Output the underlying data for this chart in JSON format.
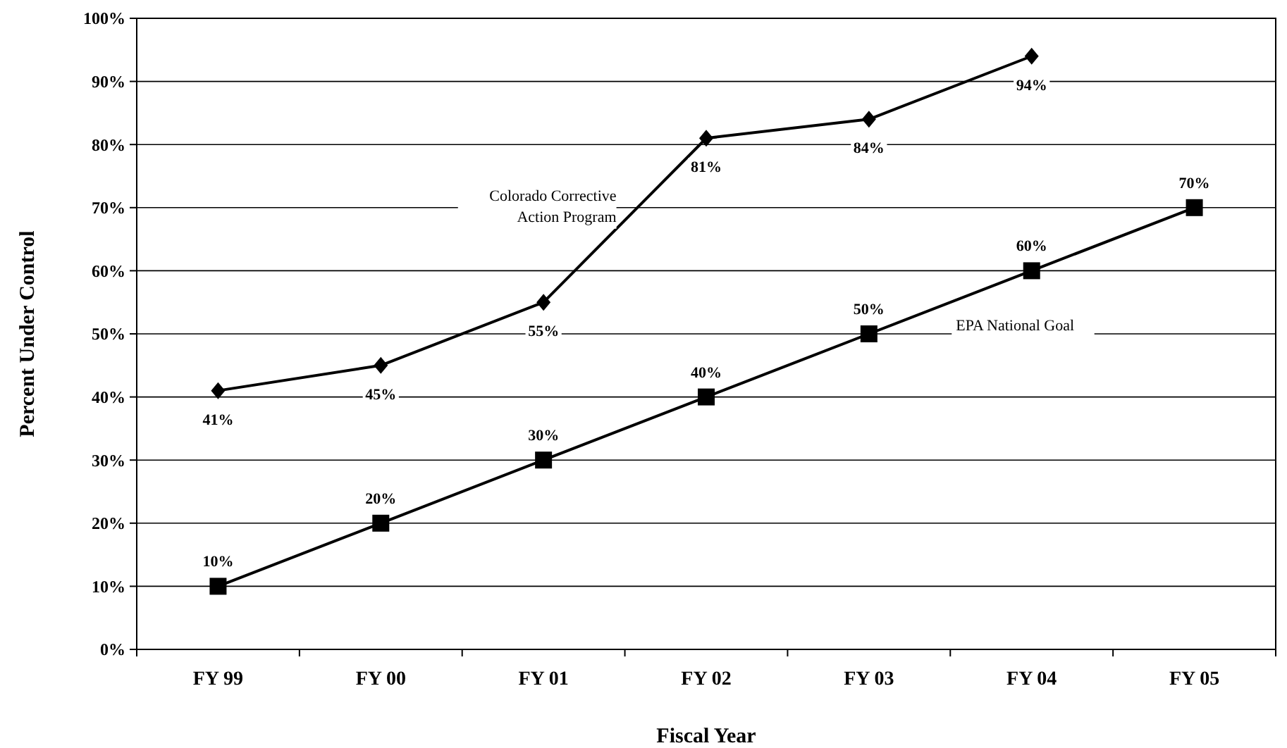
{
  "chart_data": {
    "type": "line",
    "xlabel": "Fiscal Year",
    "ylabel": "Percent Under Control",
    "categories": [
      "FY 99",
      "FY 00",
      "FY 01",
      "FY 02",
      "FY 03",
      "FY 04",
      "FY 05"
    ],
    "series": [
      {
        "name": "Colorado Corrective Action Program",
        "color": "#000000",
        "marker": "diamond",
        "values": [
          41,
          45,
          55,
          81,
          84,
          94,
          null
        ],
        "value_labels": [
          "41%",
          "45%",
          "55%",
          "81%",
          "84%",
          "94%",
          null
        ]
      },
      {
        "name": "EPA National Goal",
        "color": "#000000",
        "marker": "square",
        "values": [
          10,
          20,
          30,
          40,
          50,
          60,
          70
        ],
        "value_labels": [
          "10%",
          "20%",
          "30%",
          "40%",
          "50%",
          "60%",
          "70%"
        ]
      }
    ],
    "ylim": [
      0,
      100
    ],
    "yticks": [
      {
        "value": 0,
        "label": "0%"
      },
      {
        "value": 10,
        "label": "10%"
      },
      {
        "value": 20,
        "label": "20%"
      },
      {
        "value": 30,
        "label": "30%"
      },
      {
        "value": 40,
        "label": "40%"
      },
      {
        "value": 50,
        "label": "50%"
      },
      {
        "value": 60,
        "label": "60%"
      },
      {
        "value": 70,
        "label": "70%"
      },
      {
        "value": 80,
        "label": "80%"
      },
      {
        "value": 90,
        "label": "90%"
      },
      {
        "value": 100,
        "label": "100%"
      }
    ],
    "grid": "y",
    "line_style": "solid"
  }
}
